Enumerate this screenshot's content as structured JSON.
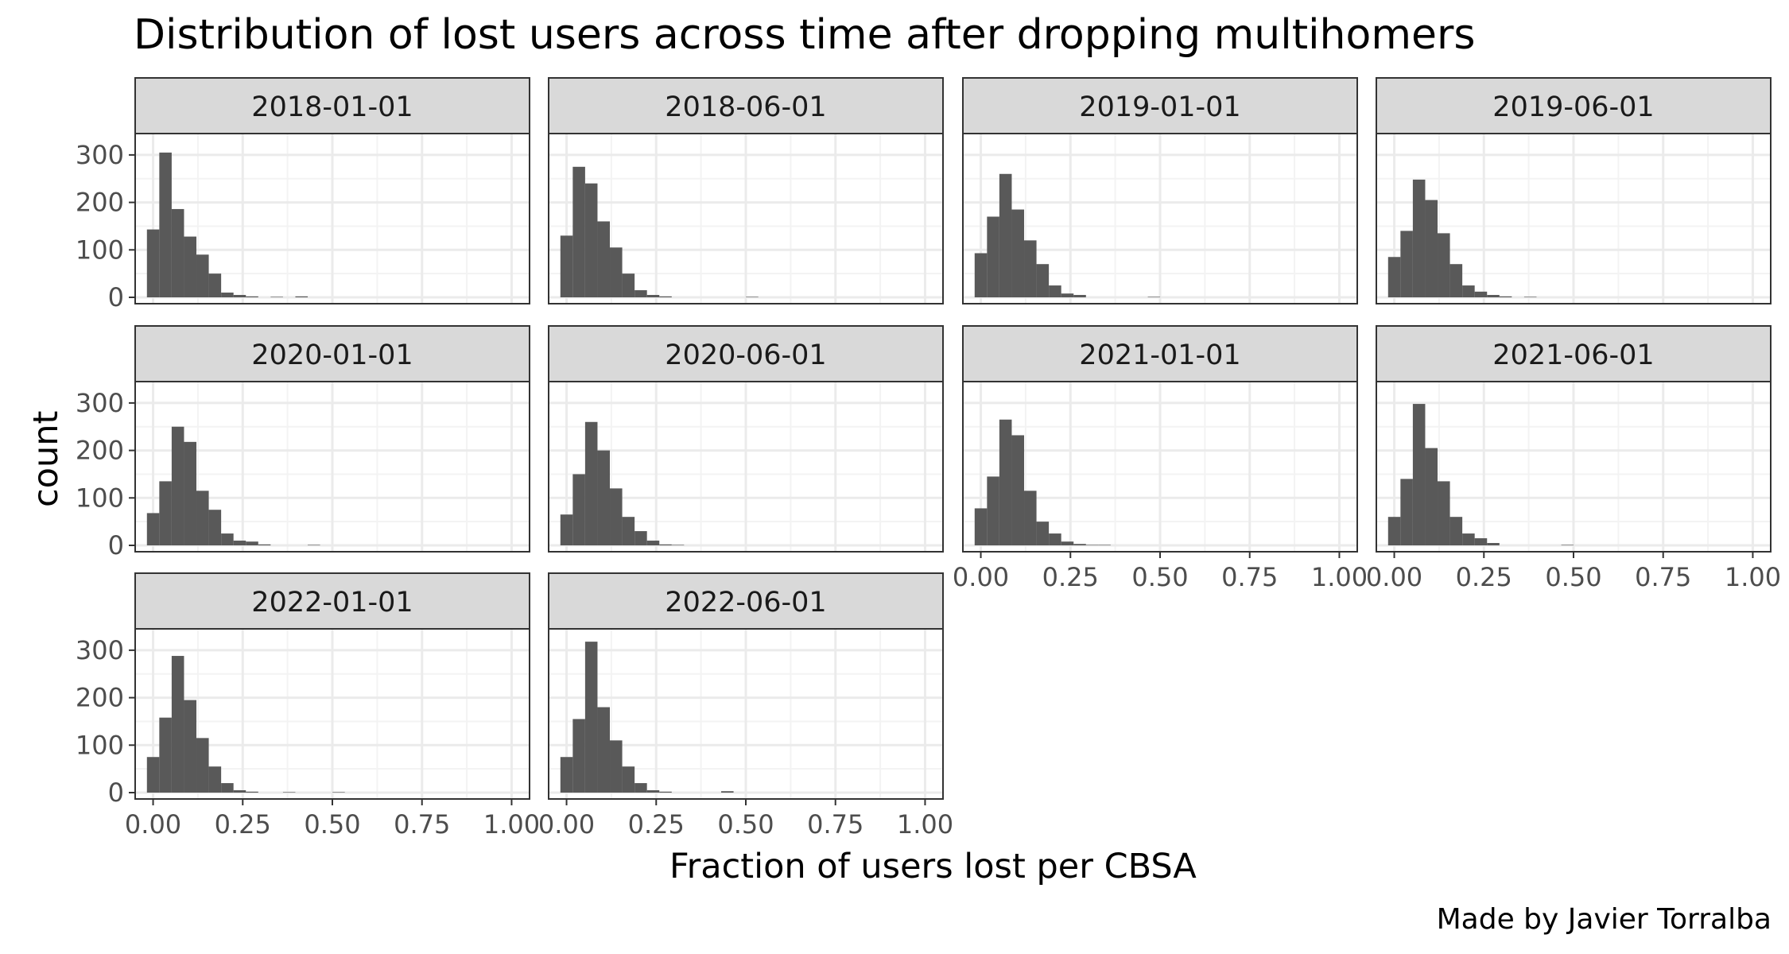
{
  "chart_data": {
    "type": "histogram-facets",
    "title": "Distribution of lost users across time after dropping multihomers",
    "xlabel": "Fraction of users lost per CBSA",
    "ylabel": "count",
    "caption": "Made by Javier Torralba",
    "xlim": [
      -0.05,
      1.05
    ],
    "ylim": [
      0,
      340
    ],
    "x_ticks": [
      "0.00",
      "0.25",
      "0.50",
      "0.75",
      "1.00"
    ],
    "x_tick_values": [
      0,
      0.25,
      0.5,
      0.75,
      1.0
    ],
    "y_ticks": [
      "0",
      "100",
      "200",
      "300"
    ],
    "y_tick_values": [
      0,
      100,
      200,
      300
    ],
    "grid": true,
    "bin_width": 0.0345,
    "bin_start": -0.0172,
    "facets": [
      {
        "label": "2018-01-01",
        "counts": [
          143,
          305,
          186,
          128,
          90,
          50,
          10,
          5,
          2,
          0,
          1,
          0,
          2,
          0,
          0,
          0,
          0,
          0,
          0,
          0,
          0,
          0,
          0,
          0,
          0,
          0,
          0,
          0,
          0,
          0
        ]
      },
      {
        "label": "2018-06-01",
        "counts": [
          130,
          275,
          240,
          160,
          105,
          50,
          15,
          5,
          2,
          0,
          0,
          0,
          0,
          0,
          0,
          1,
          0,
          0,
          0,
          0,
          0,
          0,
          0,
          0,
          0,
          0,
          0,
          0,
          0,
          0
        ]
      },
      {
        "label": "2019-01-01",
        "counts": [
          93,
          170,
          260,
          185,
          120,
          70,
          25,
          8,
          5,
          0,
          0,
          0,
          0,
          0,
          1,
          0,
          0,
          0,
          0,
          0,
          0,
          0,
          0,
          0,
          0,
          0,
          0,
          0,
          0,
          0
        ]
      },
      {
        "label": "2019-06-01",
        "counts": [
          85,
          140,
          248,
          205,
          135,
          70,
          25,
          12,
          5,
          2,
          0,
          1,
          0,
          0,
          0,
          0,
          0,
          0,
          0,
          0,
          0,
          0,
          0,
          0,
          0,
          0,
          0,
          0,
          0,
          0
        ]
      },
      {
        "label": "2020-01-01",
        "counts": [
          68,
          135,
          250,
          218,
          115,
          75,
          25,
          10,
          8,
          2,
          0,
          0,
          0,
          1,
          0,
          0,
          0,
          0,
          0,
          0,
          0,
          0,
          0,
          0,
          0,
          0,
          0,
          0,
          0,
          0
        ]
      },
      {
        "label": "2020-06-01",
        "counts": [
          65,
          150,
          260,
          200,
          120,
          60,
          30,
          10,
          2,
          1,
          0,
          0,
          0,
          0,
          0,
          0,
          0,
          0,
          0,
          0,
          0,
          0,
          0,
          0,
          0,
          0,
          0,
          0,
          0,
          0
        ]
      },
      {
        "label": "2021-01-01",
        "counts": [
          78,
          145,
          265,
          232,
          115,
          50,
          25,
          8,
          3,
          1,
          1,
          0,
          0,
          0,
          0,
          0,
          0,
          0,
          0,
          0,
          0,
          0,
          0,
          0,
          0,
          0,
          0,
          0,
          0,
          0
        ]
      },
      {
        "label": "2021-06-01",
        "counts": [
          60,
          140,
          298,
          205,
          135,
          60,
          25,
          15,
          5,
          0,
          0,
          0,
          0,
          0,
          1,
          0,
          0,
          0,
          0,
          0,
          0,
          0,
          0,
          0,
          0,
          0,
          0,
          0,
          0,
          0
        ]
      },
      {
        "label": "2022-01-01",
        "counts": [
          75,
          158,
          288,
          195,
          115,
          55,
          20,
          5,
          2,
          0,
          0,
          1,
          0,
          0,
          0,
          1,
          0,
          0,
          0,
          0,
          0,
          0,
          0,
          0,
          0,
          0,
          0,
          0,
          0,
          0
        ]
      },
      {
        "label": "2022-06-01",
        "counts": [
          75,
          155,
          318,
          180,
          110,
          55,
          20,
          5,
          2,
          0,
          0,
          0,
          0,
          3,
          0,
          0,
          0,
          0,
          0,
          0,
          0,
          0,
          0,
          0,
          0,
          0,
          0,
          0,
          0,
          0
        ]
      }
    ]
  },
  "colors": {
    "bar": "#595959",
    "strip_fill": "#d9d9d9",
    "panel_border": "#333333",
    "grid_major": "#ebebeb",
    "grid_minor": "#f3f3f3",
    "tick_text": "#4d4d4d"
  }
}
